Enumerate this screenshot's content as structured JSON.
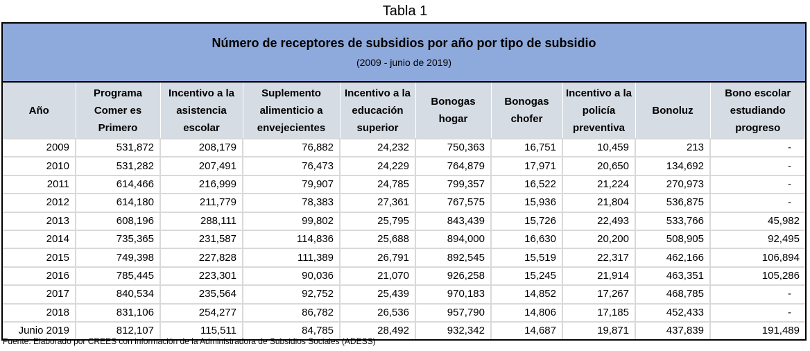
{
  "caption": "Tabla 1",
  "band": {
    "title": "Número de receptores de subsidios por año por tipo de subsidio",
    "subtitle": "(2009 - junio de 2019)"
  },
  "columns": [
    "Año",
    "Programa Comer es Primero",
    "Incentivo a la asistencia escolar",
    "Suplemento alimenticio a envejecientes",
    "Incentivo a la educación superior",
    "Bonogas hogar",
    "Bonogas chofer",
    "Incentivo a la policía preventiva",
    "Bonoluz",
    "Bono escolar estudiando progreso"
  ],
  "rows": [
    [
      "2009",
      "531,872",
      "208,179",
      "76,882",
      "24,232",
      "750,363",
      "16,751",
      "10,459",
      "213",
      "-"
    ],
    [
      "2010",
      "531,282",
      "207,491",
      "76,473",
      "24,229",
      "764,879",
      "17,971",
      "20,650",
      "134,692",
      "-"
    ],
    [
      "2011",
      "614,466",
      "216,999",
      "79,907",
      "24,785",
      "799,357",
      "16,522",
      "21,224",
      "270,973",
      "-"
    ],
    [
      "2012",
      "614,180",
      "211,779",
      "78,383",
      "27,361",
      "767,575",
      "15,936",
      "21,804",
      "536,875",
      "-"
    ],
    [
      "2013",
      "608,196",
      "288,111",
      "99,802",
      "25,795",
      "843,439",
      "15,726",
      "22,493",
      "533,766",
      "45,982"
    ],
    [
      "2014",
      "735,365",
      "231,587",
      "114,836",
      "25,688",
      "894,000",
      "16,630",
      "20,200",
      "508,905",
      "92,495"
    ],
    [
      "2015",
      "749,398",
      "227,828",
      "111,389",
      "26,791",
      "892,545",
      "15,519",
      "22,317",
      "462,166",
      "106,894"
    ],
    [
      "2016",
      "785,445",
      "223,301",
      "90,036",
      "21,070",
      "926,258",
      "15,245",
      "21,914",
      "463,351",
      "105,286"
    ],
    [
      "2017",
      "840,534",
      "235,564",
      "92,752",
      "25,439",
      "970,183",
      "14,852",
      "17,267",
      "468,785",
      "-"
    ],
    [
      "2018",
      "831,106",
      "254,277",
      "86,782",
      "26,536",
      "957,790",
      "14,806",
      "17,185",
      "452,433",
      "-"
    ],
    [
      "Junio 2019",
      "812,107",
      "115,511",
      "84,785",
      "28,492",
      "932,342",
      "14,687",
      "19,871",
      "437,839",
      "191,489"
    ]
  ],
  "footer": "Fuente: Elaborado por CREES con información de la Administradora de Subsidios Sociales (ADESS)",
  "colors": {
    "band": "#8EA9DB",
    "header": "#D6DCE4",
    "gridline": "#D9D9D9",
    "border": "#000000"
  }
}
